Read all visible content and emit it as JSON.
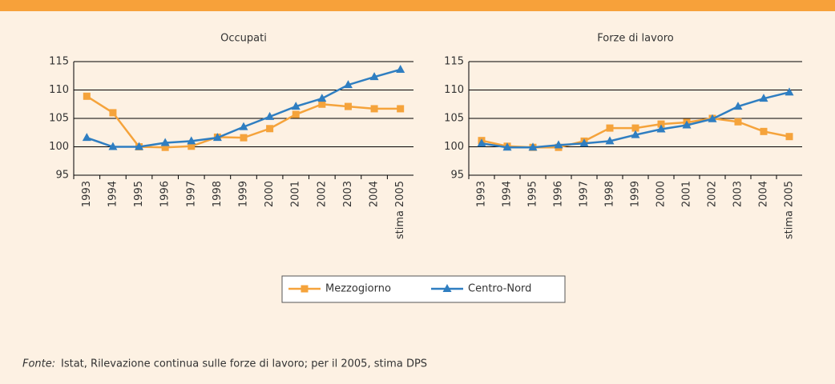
{
  "chart_data": [
    {
      "type": "line",
      "title": "Occupati",
      "categories": [
        "1993",
        "1994",
        "1995",
        "1996",
        "1997",
        "1998",
        "1999",
        "2000",
        "2001",
        "2002",
        "2003",
        "2004",
        "2005"
      ],
      "annotation": "stima",
      "series": [
        {
          "name": "Mezzogiorno",
          "color": "#f5a33b",
          "marker": "square",
          "values": [
            108.9,
            106.0,
            100,
            99.9,
            100.1,
            101.7,
            101.6,
            103.2,
            105.7,
            107.5,
            107.1,
            106.7,
            106.7
          ]
        },
        {
          "name": "Centro-Nord",
          "color": "#2f7ec1",
          "marker": "triangle",
          "values": [
            101.6,
            100,
            100,
            100.7,
            101,
            101.6,
            103.5,
            105.3,
            107.1,
            108.5,
            110.9,
            112.3,
            113.6
          ]
        }
      ],
      "ylim": [
        95,
        115
      ],
      "yticks": [
        95,
        100,
        105,
        110,
        115
      ],
      "grid": true
    },
    {
      "type": "line",
      "title": "Forze di lavoro",
      "categories": [
        "1993",
        "1994",
        "1995",
        "1996",
        "1997",
        "1998",
        "1999",
        "2000",
        "2001",
        "2002",
        "2003",
        "2004",
        "2005"
      ],
      "annotation": "stima",
      "series": [
        {
          "name": "Mezzogiorno",
          "color": "#f5a33b",
          "marker": "square",
          "values": [
            101.1,
            100.1,
            99.9,
            99.9,
            101,
            103.3,
            103.3,
            104,
            104.3,
            105,
            104.4,
            102.7,
            101.8
          ]
        },
        {
          "name": "Centro-Nord",
          "color": "#2f7ec1",
          "marker": "triangle",
          "values": [
            100.6,
            99.9,
            99.9,
            100.3,
            100.6,
            101,
            102.1,
            103.1,
            103.8,
            104.9,
            107.1,
            108.5,
            109.6
          ]
        }
      ],
      "ylim": [
        95,
        115
      ],
      "yticks": [
        95,
        100,
        105,
        110,
        115
      ],
      "grid": true
    }
  ],
  "source": {
    "label": "Fonte:",
    "text": "Istat, Rilevazione continua sulle forze di lavoro; per il 2005, stima DPS"
  }
}
